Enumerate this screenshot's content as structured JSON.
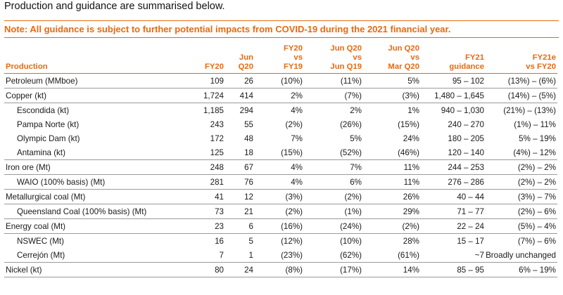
{
  "intro": "Production and guidance are summarised below.",
  "note": "Note: All guidance is subject to further potential impacts from COVID-19 during the 2021 financial year.",
  "columns": [
    {
      "lines": [
        "Production"
      ]
    },
    {
      "lines": [
        "FY20"
      ]
    },
    {
      "lines": [
        "Jun",
        "Q20"
      ]
    },
    {
      "lines": [
        "FY20",
        "vs",
        "FY19"
      ]
    },
    {
      "lines": [
        "Jun Q20",
        "vs",
        "Jun Q19"
      ]
    },
    {
      "lines": [
        "Jun Q20",
        "vs",
        "Mar Q20"
      ]
    },
    {
      "lines": [
        "FY21",
        "guidance"
      ]
    },
    {
      "lines": [
        "FY21e",
        "vs FY20"
      ]
    }
  ],
  "rows": [
    {
      "cells": [
        "Petroleum (MMboe)",
        "109",
        "26",
        "(10%)",
        "(11%)",
        "5%",
        "95 – 102",
        "(13%) – (6%)"
      ],
      "sub": false,
      "sep": false
    },
    {
      "cells": [
        "Copper (kt)",
        "1,724",
        "414",
        "2%",
        "(7%)",
        "(3%)",
        "1,480 – 1,645",
        "(14%) – (5%)"
      ],
      "sub": false,
      "sep": true
    },
    {
      "cells": [
        "Escondida (kt)",
        "1,185",
        "294",
        "4%",
        "2%",
        "1%",
        "940 – 1,030",
        "(21%) – (13%)"
      ],
      "sub": true,
      "sep": true
    },
    {
      "cells": [
        "Pampa Norte (kt)",
        "243",
        "55",
        "(2%)",
        "(26%)",
        "(15%)",
        "240 – 270",
        "(1%) – 11%"
      ],
      "sub": true,
      "sep": false
    },
    {
      "cells": [
        "Olympic Dam (kt)",
        "172",
        "48",
        "7%",
        "5%",
        "24%",
        "180 – 205",
        "5% – 19%"
      ],
      "sub": true,
      "sep": false
    },
    {
      "cells": [
        "Antamina (kt)",
        "125",
        "18",
        "(15%)",
        "(52%)",
        "(46%)",
        "120 – 140",
        "(4%) – 12%"
      ],
      "sub": true,
      "sep": false
    },
    {
      "cells": [
        "Iron ore (Mt)",
        "248",
        "67",
        "4%",
        "7%",
        "11%",
        "244 – 253",
        "(2%) – 2%"
      ],
      "sub": false,
      "sep": true
    },
    {
      "cells": [
        "WAIO (100% basis) (Mt)",
        "281",
        "76",
        "4%",
        "6%",
        "11%",
        "276 – 286",
        "(2%) – 2%"
      ],
      "sub": true,
      "sep": true
    },
    {
      "cells": [
        "Metallurgical coal (Mt)",
        "41",
        "12",
        "(3%)",
        "(2%)",
        "26%",
        "40 – 44",
        "(3%) – 7%"
      ],
      "sub": false,
      "sep": true
    },
    {
      "cells": [
        "Queensland Coal (100% basis) (Mt)",
        "73",
        "21",
        "(2%)",
        "(1%)",
        "29%",
        "71 – 77",
        "(2%) – 6%"
      ],
      "sub": true,
      "sep": true
    },
    {
      "cells": [
        "Energy coal (Mt)",
        "23",
        "6",
        "(16%)",
        "(24%)",
        "(2%)",
        "22 – 24",
        "(5%) – 4%"
      ],
      "sub": false,
      "sep": true
    },
    {
      "cells": [
        "NSWEC (Mt)",
        "16",
        "5",
        "(12%)",
        "(10%)",
        "28%",
        "15 – 17",
        "(7%) – 6%"
      ],
      "sub": true,
      "sep": true
    },
    {
      "cells": [
        "Cerrejón (Mt)",
        "7",
        "1",
        "(23%)",
        "(62%)",
        "(61%)",
        "~7",
        "Broadly unchanged"
      ],
      "sub": true,
      "sep": false
    },
    {
      "cells": [
        "Nickel (kt)",
        "80",
        "24",
        "(8%)",
        "(17%)",
        "14%",
        "85 – 95",
        "6% – 19%"
      ],
      "sub": false,
      "sep": true
    }
  ],
  "colors": {
    "accent": "#e8690e",
    "rule": "#9a9a9a"
  }
}
